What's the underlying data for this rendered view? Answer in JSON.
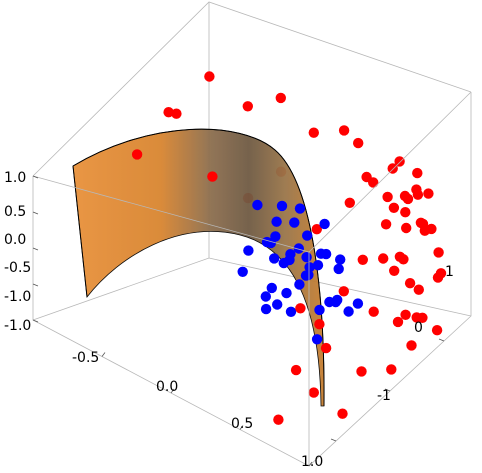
{
  "chart_data": {
    "type": "scatter",
    "dimensions": 3,
    "title": "",
    "xlabel": "",
    "ylabel": "",
    "zlabel": "",
    "xlim": [
      -1.0,
      1.0
    ],
    "ylim": [
      -1.5,
      1.5
    ],
    "zlim": [
      -1.0,
      1.0
    ],
    "x_ticks": [
      -0.5,
      0.0,
      0.5,
      1.0
    ],
    "x_tick_labels": [
      "-0.5",
      "0.0",
      "0.5",
      "1.0"
    ],
    "y_ticks": [
      -1,
      0,
      1
    ],
    "y_tick_labels": [
      "-1",
      "0",
      "1"
    ],
    "z_ticks": [
      -1.0,
      -0.5,
      0.0,
      0.5,
      1.0
    ],
    "z_tick_labels": [
      "-1.0",
      "-0.5",
      "0.0",
      "0.5",
      "1.0"
    ],
    "extra_tick_label": "1.0",
    "surface": {
      "type": "cylinder",
      "equation": "x^2 + y^2 = 1 (x >= 0 half)",
      "color_front": "#e38a2e",
      "color_back": "#8a6a45",
      "edge_color": "#000000"
    },
    "series": [
      {
        "color": "#ff0000",
        "points": [
          [
            0.55,
            1.2,
            0.8
          ],
          [
            0.7,
            1.1,
            0.6
          ],
          [
            0.6,
            1.3,
            0.4
          ],
          [
            0.8,
            1.0,
            0.9
          ],
          [
            0.75,
            1.25,
            0.2
          ],
          [
            0.9,
            0.9,
            0.5
          ],
          [
            0.65,
            1.4,
            0.7
          ],
          [
            0.85,
            1.15,
            0.3
          ],
          [
            0.95,
            0.7,
            0.8
          ],
          [
            0.5,
            1.35,
            0.1
          ],
          [
            0.7,
            0.95,
            -0.1
          ],
          [
            0.9,
            1.2,
            -0.3
          ],
          [
            0.6,
            1.1,
            -0.5
          ],
          [
            0.8,
            0.8,
            -0.7
          ],
          [
            0.95,
            0.5,
            0.1
          ],
          [
            1.0,
            0.6,
            -0.4
          ],
          [
            0.7,
            1.3,
            -0.8
          ],
          [
            0.85,
            0.9,
            0.95
          ],
          [
            0.55,
            1.45,
            -0.2
          ],
          [
            0.95,
            1.0,
            -0.9
          ],
          [
            0.75,
            1.35,
            0.55
          ],
          [
            0.65,
            0.85,
            0.75
          ],
          [
            0.9,
            0.75,
            -0.6
          ],
          [
            1.0,
            0.9,
            0.3
          ],
          [
            0.8,
            1.4,
            -0.6
          ],
          [
            0.6,
            1.2,
            0.95
          ],
          [
            0.98,
            0.3,
            0.6
          ],
          [
            0.98,
            0.2,
            -0.2
          ],
          [
            0.97,
            0.1,
            -0.8
          ],
          [
            0.99,
            -0.1,
            0.9
          ],
          [
            0.96,
            -0.2,
            0.2
          ],
          [
            0.95,
            -0.4,
            -0.5
          ],
          [
            0.9,
            -0.6,
            0.7
          ],
          [
            0.93,
            -0.7,
            -0.9
          ],
          [
            0.85,
            -0.8,
            0.0
          ],
          [
            0.8,
            -0.9,
            -0.6
          ],
          [
            0.88,
            -1.0,
            0.5
          ],
          [
            0.75,
            -1.1,
            -0.2
          ],
          [
            0.82,
            -1.2,
            0.8
          ],
          [
            0.7,
            -1.3,
            -0.8
          ],
          [
            0.92,
            -0.3,
            0.95
          ],
          [
            0.98,
            0.45,
            -0.7
          ],
          [
            0.7,
            1.05,
            0.45
          ],
          [
            0.6,
            0.95,
            0.25
          ],
          [
            0.4,
            1.1,
            0.6
          ],
          [
            0.3,
            1.2,
            0.9
          ],
          [
            0.35,
            1.35,
            0.3
          ],
          [
            0.2,
            1.3,
            -0.1
          ],
          [
            0.1,
            1.45,
            0.7
          ],
          [
            -0.1,
            1.4,
            0.5
          ],
          [
            -0.3,
            1.3,
            0.85
          ],
          [
            -0.5,
            1.2,
            0.6
          ],
          [
            -0.7,
            1.0,
            0.95
          ],
          [
            -0.9,
            0.9,
            0.3
          ],
          [
            -0.2,
            1.05,
            0.1
          ],
          [
            -0.6,
            0.8,
            -0.2
          ],
          [
            -0.8,
            0.5,
            0.7
          ],
          [
            -0.95,
            0.3,
            0.1
          ],
          [
            -0.4,
            0.95,
            -0.4
          ],
          [
            0.0,
            1.2,
            -0.6
          ]
        ]
      },
      {
        "color": "#0000ff",
        "points": [
          [
            0.1,
            0.2,
            0.3
          ],
          [
            0.2,
            -0.1,
            0.1
          ],
          [
            0.3,
            0.3,
            -0.2
          ],
          [
            0.0,
            0.1,
            0.5
          ],
          [
            0.25,
            0.0,
            -0.4
          ],
          [
            0.4,
            0.2,
            0.0
          ],
          [
            0.15,
            0.4,
            0.2
          ],
          [
            0.35,
            -0.2,
            0.3
          ],
          [
            0.05,
            -0.3,
            -0.1
          ],
          [
            0.45,
            0.1,
            -0.5
          ],
          [
            0.2,
            0.5,
            -0.3
          ],
          [
            0.3,
            -0.4,
            0.0
          ],
          [
            0.5,
            0.0,
            0.4
          ],
          [
            0.1,
            0.0,
            -0.6
          ],
          [
            0.25,
            0.25,
            0.6
          ],
          [
            0.4,
            -0.3,
            -0.3
          ],
          [
            0.55,
            0.2,
            0.1
          ],
          [
            0.0,
            0.35,
            -0.2
          ],
          [
            0.35,
            0.45,
            0.35
          ],
          [
            0.6,
            -0.1,
            -0.1
          ],
          [
            0.15,
            -0.45,
            0.4
          ],
          [
            0.45,
            0.4,
            -0.6
          ],
          [
            0.05,
            0.15,
            0.0
          ],
          [
            0.3,
            0.1,
            0.2
          ],
          [
            0.2,
            -0.25,
            -0.5
          ],
          [
            0.5,
            -0.4,
            0.25
          ],
          [
            0.4,
            0.0,
            0.55
          ],
          [
            0.65,
            0.3,
            -0.35
          ],
          [
            0.1,
            0.3,
            0.45
          ],
          [
            0.55,
            -0.2,
            -0.6
          ],
          [
            0.25,
            -0.05,
            0.05
          ],
          [
            0.35,
            0.15,
            -0.15
          ],
          [
            0.45,
            -0.15,
            0.15
          ],
          [
            0.6,
            0.1,
            0.35
          ],
          [
            0.2,
            0.2,
            -0.05
          ],
          [
            0.7,
            0.0,
            -0.2
          ],
          [
            0.5,
            0.3,
            -0.45
          ],
          [
            0.3,
            -0.3,
            -0.3
          ],
          [
            0.15,
            0.05,
            0.25
          ],
          [
            0.4,
            0.35,
            0.05
          ]
        ]
      }
    ],
    "grid": false,
    "legend": "none",
    "colors": {
      "box": "#b8b8b8",
      "red": "#ff0000",
      "blue": "#0000ff"
    }
  }
}
